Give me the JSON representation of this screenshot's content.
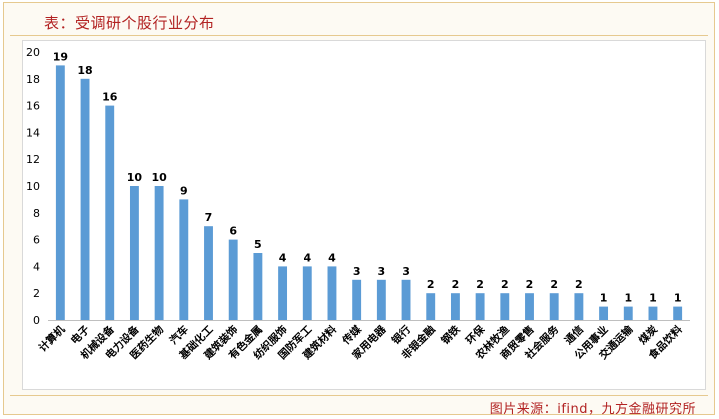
{
  "header": {
    "title": "表：受调研个股行业分布"
  },
  "footer": {
    "source": "图片来源：ifind，九方金融研究所"
  },
  "colors": {
    "bar": "#5b9bd5",
    "accent": "#b22222",
    "frame": "#e6c98f"
  },
  "chart_data": {
    "type": "bar",
    "title": "",
    "xlabel": "",
    "ylabel": "",
    "ylim": [
      0,
      20
    ],
    "yticks": [
      0,
      2,
      4,
      6,
      8,
      10,
      12,
      14,
      16,
      18,
      20
    ],
    "grid": false,
    "legend": "none",
    "categories": [
      "计算机",
      "电子",
      "机械设备",
      "电力设备",
      "医药生物",
      "汽车",
      "基础化工",
      "建筑装饰",
      "有色金属",
      "纺织服饰",
      "国防军工",
      "建筑材料",
      "传媒",
      "家用电器",
      "银行",
      "非银金融",
      "钢铁",
      "环保",
      "农林牧渔",
      "商贸零售",
      "社会服务",
      "通信",
      "公用事业",
      "交通运输",
      "煤炭",
      "食品饮料"
    ],
    "values": [
      19,
      18,
      16,
      10,
      10,
      9,
      7,
      6,
      5,
      4,
      4,
      4,
      3,
      3,
      3,
      2,
      2,
      2,
      2,
      2,
      2,
      2,
      1,
      1,
      1,
      1
    ]
  }
}
